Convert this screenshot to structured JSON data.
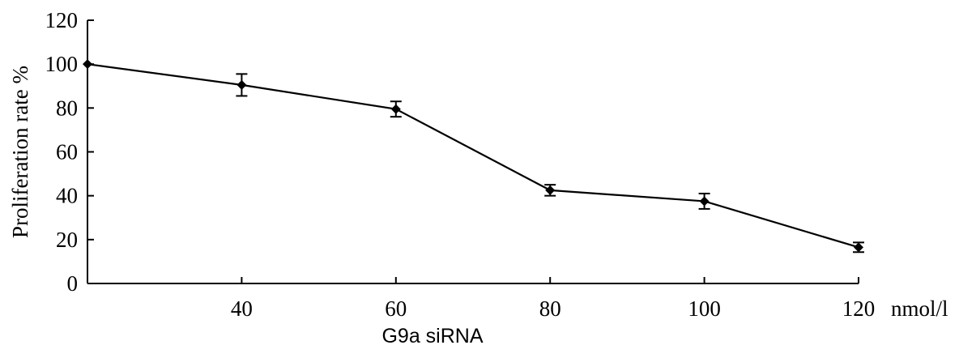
{
  "chart_data": {
    "type": "line",
    "xlabel": "G9a siRNA",
    "x_unit": "nmol/l",
    "ylabel": "Proliferation rate %",
    "xlim": [
      20,
      120
    ],
    "ylim": [
      0,
      120
    ],
    "x_ticks": [
      40,
      60,
      80,
      100,
      120
    ],
    "y_ticks": [
      0,
      20,
      40,
      60,
      80,
      100,
      120
    ],
    "grid": false,
    "series": [
      {
        "x": [
          20,
          40,
          60,
          80,
          100,
          120
        ],
        "values": [
          100,
          90.5,
          79.5,
          42.5,
          37.5,
          16.5
        ],
        "error": [
          0,
          5,
          3.5,
          2.5,
          3.5,
          2.2
        ]
      }
    ]
  }
}
